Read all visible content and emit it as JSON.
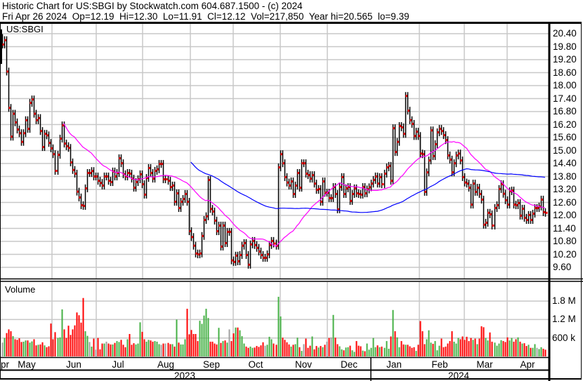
{
  "header": {
    "title": "Historic Chart for US:SBGI by Stockwatch.com 604.687.1500 - (c) 2024",
    "info": "Fri Apr 26 2024  Op=12.19  Hi=12.30  Lo=11.91  Cl=12.12  Vol=217,850  Year hi=20.565  lo=9.39"
  },
  "chart_data": {
    "type": "bar",
    "symbol": "US:SBGI",
    "volume_label": "Volume",
    "price_axis": {
      "ticks": [
        "20.40",
        "19.80",
        "19.20",
        "18.60",
        "18.00",
        "17.40",
        "16.80",
        "16.20",
        "15.60",
        "15.00",
        "14.40",
        "13.80",
        "13.20",
        "12.60",
        "12.00",
        "11.40",
        "10.80",
        "10.20",
        "9.60"
      ],
      "range": [
        9.6,
        20.4
      ]
    },
    "volume_axis": {
      "ticks": [
        "1.8 M",
        "1.2 M",
        "600 k"
      ],
      "tick_values_k": [
        1800,
        1200,
        600
      ]
    },
    "x_axis": {
      "months": [
        "pr",
        "May",
        "Jun",
        "Jul",
        "Aug",
        "Sep",
        "Oct",
        "Nov",
        "Dec",
        "Jan",
        "Feb",
        "Mar",
        "Apr"
      ],
      "years": [
        "2023",
        "2024"
      ]
    },
    "grid": true,
    "moving_averages": [
      {
        "period": 30,
        "color": "#ff00ff"
      },
      {
        "period": 90,
        "color": "#0000ff"
      }
    ],
    "colors": {
      "bar": "#000000",
      "close_tick": "#ff0000",
      "volume_up": "#44b044",
      "volume_down": "#ff0000",
      "volume_flat": "#a0a0a0",
      "grid": "#c8c8c8"
    },
    "closes": [
      19.9,
      20.1,
      18.65,
      16.97,
      15.64,
      16.7,
      16.3,
      15.97,
      15.8,
      15.4,
      15.8,
      16.4,
      16.0,
      17.2,
      17.36,
      16.7,
      16.4,
      16.5,
      15.9,
      15.16,
      15.77,
      15.7,
      15.35,
      15.1,
      14.83,
      14.06,
      14.8,
      15.55,
      16.16,
      15.32,
      15.2,
      15.12,
      14.45,
      14.1,
      13.93,
      13.1,
      12.83,
      12.47,
      12.44,
      13.25,
      13.96,
      13.96,
      14.05,
      13.8,
      13.8,
      13.6,
      13.5,
      13.38,
      13.8,
      13.8,
      13.6,
      13.54,
      14.03,
      13.8,
      13.96,
      14.64,
      14.41,
      13.9,
      13.8,
      13.96,
      13.93,
      13.7,
      13.28,
      13.54,
      13.67,
      13.9,
      13.44,
      12.96,
      13.73,
      14.19,
      13.96,
      13.7,
      14.06,
      14.13,
      14.38,
      14.38,
      13.67,
      13.67,
      13.6,
      13.31,
      13.38,
      12.63,
      13.02,
      12.34,
      12.63,
      12.76,
      12.99,
      12.63,
      11.27,
      11.0,
      10.6,
      10.24,
      10.2,
      10.24,
      11.05,
      11.79,
      11.96,
      13.64,
      12.3,
      12.18,
      11.76,
      11.27,
      11.53,
      10.56,
      11.53,
      10.72,
      11.24,
      11.24,
      9.92,
      9.85,
      10.14,
      9.88,
      10.17,
      10.6,
      10.72,
      10.17,
      9.72,
      10.66,
      10.82,
      10.63,
      10.5,
      10.33,
      10.17,
      10.04,
      10.04,
      10.2,
      10.63,
      10.82,
      10.7,
      10.6,
      14.22,
      14.83,
      14.41,
      13.77,
      13.52,
      13.38,
      13.57,
      12.99,
      13.38,
      13.96,
      13.28,
      14.41,
      14.41,
      13.93,
      13.86,
      13.7,
      13.86,
      13.47,
      13.18,
      13.22,
      12.63,
      13.57,
      13.05,
      13.05,
      12.8,
      12.8,
      13.31,
      12.99,
      12.28,
      13.31,
      13.77,
      12.99,
      13.25,
      13.31,
      12.67,
      12.99,
      13.25,
      13.02,
      12.99,
      12.96,
      13.31,
      13.02,
      13.2,
      13.3,
      13.47,
      13.64,
      13.8,
      13.47,
      13.77,
      13.44,
      13.93,
      14.22,
      14.29,
      13.6,
      16.03,
      14.93,
      15.4,
      16.13,
      16.07,
      15.77,
      17.52,
      16.84,
      16.4,
      16.23,
      15.67,
      15.87,
      15.67,
      14.86,
      14.83,
      13.09,
      13.99,
      14.54,
      15.93,
      14.74,
      15.29,
      15.84,
      16.0,
      15.9,
      15.71,
      15.48,
      14.77,
      14.58,
      13.99,
      14.41,
      14.77,
      14.86,
      14.54,
      13.77,
      13.52,
      13.47,
      13.28,
      12.5,
      13.47,
      13.09,
      13.28,
      12.99,
      12.73,
      11.57,
      11.66,
      12.12,
      12.05,
      11.53,
      12.34,
      12.47,
      13.22,
      13.44,
      13.0,
      12.7,
      12.5,
      13.12,
      13.15,
      12.5,
      12.47,
      12.57,
      11.99,
      12.31,
      11.89,
      11.79,
      12.02,
      11.79,
      12.08,
      12.34,
      12.34,
      12.41,
      12.73,
      12.15,
      12.12
    ],
    "volumes_k": [
      450,
      600,
      760,
      880,
      820,
      660,
      560,
      540,
      590,
      470,
      480,
      520,
      520,
      450,
      490,
      560,
      360,
      380,
      390,
      460,
      360,
      300,
      330,
      1070,
      560,
      790,
      600,
      620,
      1530,
      880,
      600,
      1000,
      700,
      880,
      1010,
      1430,
      1340,
      1100,
      1900,
      820,
      670,
      470,
      320,
      580,
      220,
      600,
      230,
      420,
      420,
      480,
      420,
      390,
      390,
      440,
      500,
      470,
      540,
      380,
      300,
      560,
      730,
      380,
      430,
      390,
      420,
      1110,
      800,
      560,
      480,
      540,
      520,
      480,
      500,
      480,
      400,
      380,
      420,
      420,
      440,
      400,
      400,
      320,
      1200,
      450,
      390,
      390,
      560,
      1550,
      720,
      860,
      730,
      730,
      500,
      1160,
      1060,
      1330,
      1550,
      1250,
      480,
      480,
      420,
      390,
      930,
      440,
      500,
      520,
      450,
      880,
      500,
      750,
      940,
      940,
      850,
      660,
      420,
      320,
      280,
      320,
      280,
      290,
      340,
      310,
      360,
      460,
      350,
      380,
      640,
      560,
      420,
      380,
      1940,
      1300,
      610,
      540,
      460,
      390,
      320,
      380,
      400,
      610,
      300,
      180,
      400,
      580,
      280,
      350,
      650,
      230,
      340,
      290,
      340,
      300,
      380,
      480,
      600,
      620,
      1350,
      610,
      400,
      330,
      230,
      200,
      290,
      300,
      350,
      200,
      150,
      500,
      350,
      330,
      190,
      170,
      420,
      220,
      280,
      600,
      300,
      360,
      300,
      320,
      280,
      500,
      250,
      650,
      1510,
      820,
      620,
      300,
      500,
      390,
      380,
      380,
      330,
      280,
      300,
      180,
      380,
      1150,
      820,
      400,
      560,
      850,
      450,
      410,
      500,
      200,
      350,
      580,
      300,
      320,
      420,
      500,
      820,
      480,
      420,
      600,
      560,
      650,
      540,
      640,
      500,
      600,
      540,
      580,
      400,
      580,
      980,
      950,
      600,
      520,
      780,
      480,
      450,
      350,
      420,
      530,
      500,
      470,
      620,
      520,
      600,
      480,
      560,
      620,
      480,
      420,
      430,
      340,
      380,
      280,
      280,
      400,
      280,
      240,
      300,
      250,
      220
    ]
  }
}
